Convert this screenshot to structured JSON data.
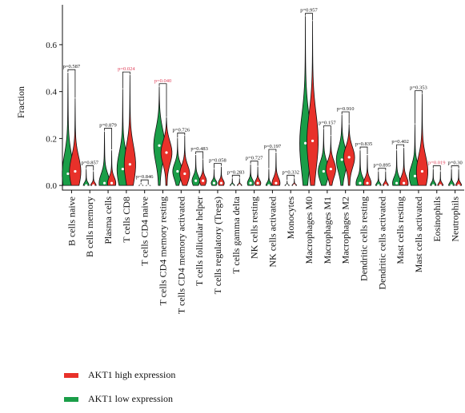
{
  "chart_data": {
    "type": "violin",
    "ylabel": "Fraction",
    "yticks": [
      0.0,
      0.2,
      0.4,
      0.6
    ],
    "ylim": [
      -0.02,
      0.77
    ],
    "colors": {
      "high": "#e8312a",
      "low": "#1a9e48",
      "significant_p": "#e0405a",
      "normal_p": "#111111"
    },
    "categories": [
      "B cells naive",
      "B cells memory",
      "Plasma cells",
      "T cells CD8",
      "T cells CD4 naive",
      "T cells CD4 memory resting",
      "T cells CD4 memory activated",
      "T cells follicular helper",
      "T cells regulatory (Tregs)",
      "T cells gamma delta",
      "NK cells resting",
      "NK cells activated",
      "Monocytes",
      "Macrophages M0",
      "Macrophages M1",
      "Macrophages M2",
      "Dendritic cells resting",
      "Dendritic cells activated",
      "Mast cells resting",
      "Mast cells activated",
      "Eosinophils",
      "Neutrophils"
    ],
    "p_values": [
      "p=0.587",
      "p=0.857",
      "p=0.879",
      "p=0.024",
      "p=0.846",
      "p=0.040",
      "p=0.726",
      "p=0.483",
      "p=0.058",
      "p=0.283",
      "p=0.727",
      "p=0.197",
      "p=0.332",
      "p=0.957",
      "p=0.157",
      "p=0.910",
      "p=0.835",
      "p=0.895",
      "p=0.402",
      "p=0.353",
      "p=0.019",
      "p=0.30"
    ],
    "significant": [
      false,
      false,
      false,
      true,
      false,
      true,
      false,
      false,
      false,
      false,
      false,
      false,
      false,
      false,
      false,
      false,
      false,
      false,
      false,
      false,
      true,
      false
    ],
    "series": [
      {
        "name": "AKT1 low expression",
        "key": "low",
        "max": [
          0.48,
          0.07,
          0.23,
          0.41,
          0.01,
          0.42,
          0.2,
          0.13,
          0.07,
          0.03,
          0.09,
          0.07,
          0.02,
          0.72,
          0.24,
          0.3,
          0.15,
          0.06,
          0.15,
          0.26,
          0.07,
          0.07
        ],
        "median": [
          0.05,
          0.0,
          0.01,
          0.07,
          0.0,
          0.17,
          0.06,
          0.02,
          0.01,
          0.0,
          0.01,
          0.0,
          0.0,
          0.18,
          0.06,
          0.11,
          0.01,
          0.0,
          0.01,
          0.04,
          0.0,
          0.0
        ]
      },
      {
        "name": "AKT1 high expression",
        "key": "high",
        "max": [
          0.37,
          0.06,
          0.15,
          0.47,
          0.0,
          0.29,
          0.21,
          0.11,
          0.08,
          0.03,
          0.08,
          0.14,
          0.03,
          0.7,
          0.21,
          0.26,
          0.13,
          0.06,
          0.16,
          0.39,
          0.06,
          0.07
        ],
        "median": [
          0.06,
          0.0,
          0.01,
          0.09,
          0.0,
          0.14,
          0.05,
          0.02,
          0.01,
          0.0,
          0.01,
          0.01,
          0.0,
          0.19,
          0.07,
          0.12,
          0.01,
          0.0,
          0.01,
          0.06,
          0.0,
          0.0
        ]
      }
    ]
  },
  "legend": [
    {
      "label": "AKT1 high expression",
      "color": "#e8312a"
    },
    {
      "label": "AKT1 low expression",
      "color": "#1a9e48"
    }
  ]
}
